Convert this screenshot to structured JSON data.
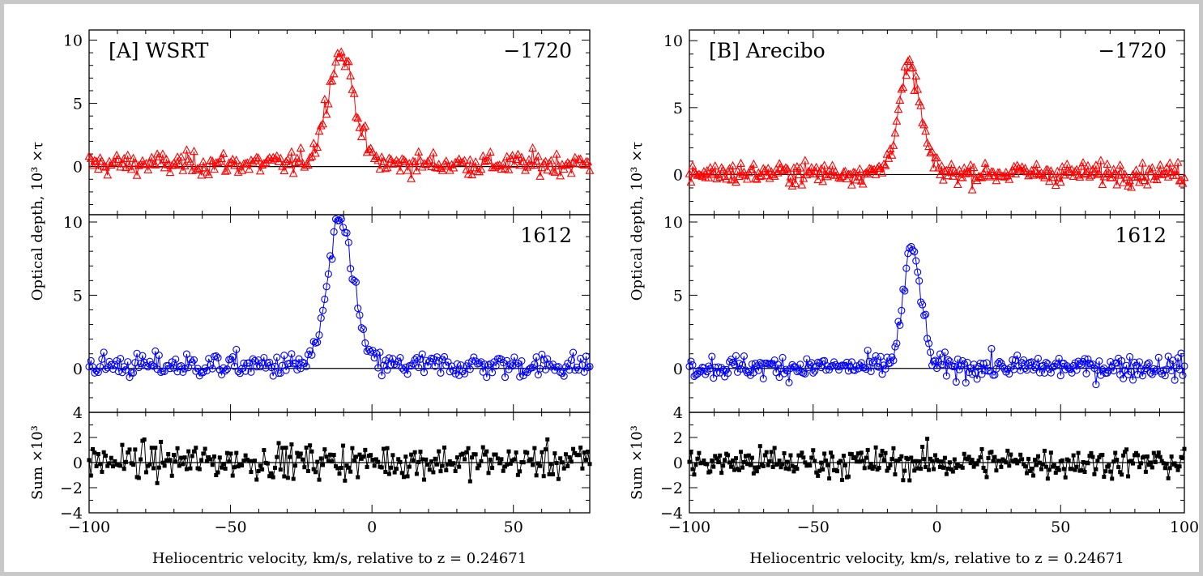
{
  "chart_data": [
    {
      "type": "scatter",
      "panel": "A",
      "xlabel": "Heliocentric velocity, km/s, relative to z = 0.24671",
      "xlim": [
        -100,
        77
      ],
      "xticks": [
        -100,
        -50,
        0,
        50
      ],
      "xtick_labels": [
        "−100",
        "−50",
        "0",
        "50"
      ],
      "ylabel": "Optical depth, 10³ ×τ",
      "subplots": [
        {
          "id": "top",
          "label": "[A] WSRT",
          "line_label": "−1720",
          "color": "#ff0000",
          "marker": "triangle",
          "ylim": [
            -3.8,
            10.8
          ],
          "yticks": [
            0,
            5,
            10
          ],
          "ytick_labels": [
            "0",
            "5",
            "10"
          ],
          "profile": {
            "base": 0.2,
            "peak": 8.7,
            "center": -11,
            "sigma": 4.8,
            "noise": 0.8
          }
        },
        {
          "id": "mid",
          "label": "",
          "line_label": "1612",
          "color": "#0000ff",
          "marker": "circle",
          "ylim": [
            -3.0,
            10.5
          ],
          "yticks": [
            0,
            5,
            10
          ],
          "ytick_labels": [
            "0",
            "5",
            "10"
          ],
          "profile": {
            "base": 0.2,
            "peak": 9.8,
            "center": -11,
            "sigma": 4.5,
            "noise": 0.75
          }
        },
        {
          "id": "bottom",
          "label": "",
          "line_label": "",
          "ylabel": "Sum ×10³",
          "color": "#000000",
          "marker": "square",
          "ylim": [
            -4,
            4
          ],
          "yticks": [
            -4,
            -2,
            0,
            2,
            4
          ],
          "ytick_labels": [
            "−4",
            "−2",
            "0",
            "2",
            "4"
          ],
          "profile": {
            "base": 0.1,
            "peak": 0,
            "center": 0,
            "sigma": 1,
            "noise": 1.2
          }
        }
      ]
    },
    {
      "type": "scatter",
      "panel": "B",
      "xlabel": "Heliocentric velocity, km/s, relative to z = 0.24671",
      "xlim": [
        -100,
        100
      ],
      "xticks": [
        -100,
        -50,
        0,
        50,
        100
      ],
      "xtick_labels": [
        "−100",
        "−50",
        "0",
        "50",
        "100"
      ],
      "ylabel": "Optical depth, 10³ ×τ",
      "subplots": [
        {
          "id": "top",
          "label": "[B] Arecibo",
          "line_label": "−1720",
          "color": "#ff0000",
          "marker": "triangle",
          "ylim": [
            -3.0,
            10.8
          ],
          "yticks": [
            0,
            5,
            10
          ],
          "ytick_labels": [
            "0",
            "5",
            "10"
          ],
          "profile": {
            "base": 0.1,
            "peak": 7.8,
            "center": -11,
            "sigma": 4.5,
            "noise": 0.7
          }
        },
        {
          "id": "mid",
          "label": "",
          "line_label": "1612",
          "color": "#0000ff",
          "marker": "circle",
          "ylim": [
            -3.0,
            10.5
          ],
          "yticks": [
            0,
            5,
            10
          ],
          "ytick_labels": [
            "0",
            "5",
            "10"
          ],
          "profile": {
            "base": 0.1,
            "peak": 8.0,
            "center": -10,
            "sigma": 3.6,
            "noise": 0.7
          }
        },
        {
          "id": "bottom",
          "label": "",
          "line_label": "",
          "ylabel": "Sum ×10³",
          "color": "#000000",
          "marker": "square",
          "ylim": [
            -4,
            4
          ],
          "yticks": [
            -4,
            -2,
            0,
            2,
            4
          ],
          "ytick_labels": [
            "−4",
            "−2",
            "0",
            "2",
            "4"
          ],
          "profile": {
            "base": 0.0,
            "peak": 0,
            "center": 0,
            "sigma": 1,
            "noise": 1.1
          }
        }
      ]
    }
  ]
}
